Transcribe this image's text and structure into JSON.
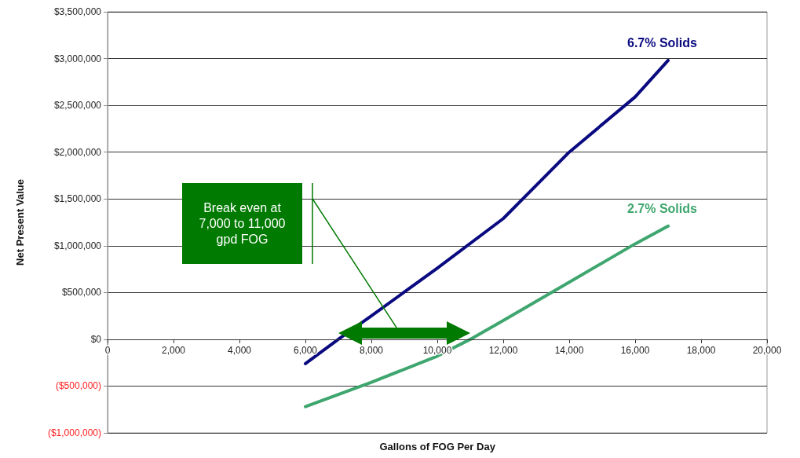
{
  "chart_data": {
    "type": "line",
    "xlabel": "Gallons of FOG Per Day",
    "ylabel": "Net Present Value",
    "x": [
      6000,
      7000,
      8000,
      10000,
      11000,
      12000,
      14000,
      16000,
      17000
    ],
    "series": [
      {
        "name": "6.7% Solids",
        "color": "#0a0a80",
        "values": [
          -260000,
          0,
          250000,
          760000,
          null,
          1290000,
          2000000,
          2590000,
          2980000
        ]
      },
      {
        "name": "2.7% Solids",
        "color": "#3ea66e",
        "values": [
          -720000,
          null,
          -460000,
          -180000,
          0,
          200000,
          610000,
          1020000,
          1210000
        ]
      }
    ],
    "xlim": [
      0,
      20000
    ],
    "xticks": [
      0,
      {
        "value": 2000,
        "label": "2,000"
      },
      {
        "value": 4000,
        "label": "4,000"
      },
      {
        "value": 6000,
        "label": "6,000"
      },
      {
        "value": 8000,
        "label": "8,000"
      },
      {
        "value": 10000,
        "label": "10,000"
      },
      {
        "value": 12000,
        "label": "12,000"
      },
      {
        "value": 14000,
        "label": "14,000"
      },
      {
        "value": 16000,
        "label": "16,000"
      },
      {
        "value": 18000,
        "label": "18,000"
      },
      {
        "value": 20000,
        "label": "20,000"
      }
    ],
    "ylim": [
      -1000000,
      3500000
    ],
    "yticks": [
      {
        "value": -1000000,
        "label": "($1,000,000)"
      },
      {
        "value": -500000,
        "label": "($500,000)"
      },
      {
        "value": 0,
        "label": "$0"
      },
      {
        "value": 500000,
        "label": "$500,000"
      },
      {
        "value": 1000000,
        "label": "$1,000,000"
      },
      {
        "value": 1500000,
        "label": "$1,500,000"
      },
      {
        "value": 2000000,
        "label": "$2,000,000"
      },
      {
        "value": 2500000,
        "label": "$2,500,000"
      },
      {
        "value": 3000000,
        "label": "$3,000,000"
      },
      {
        "value": 3500000,
        "label": "$3,500,000"
      }
    ],
    "annotations": [
      "Break even at 7,000 to 11,000 gpd FOG"
    ],
    "grid": "y",
    "legend": false,
    "marker": "none",
    "line_style": "solid"
  }
}
